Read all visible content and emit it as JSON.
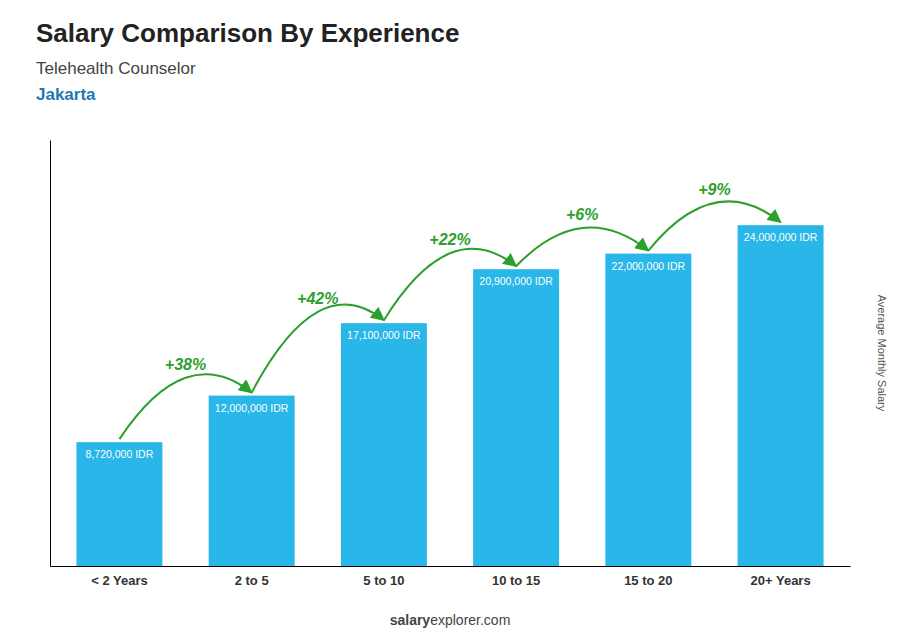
{
  "chart_data": {
    "type": "bar",
    "title": "Salary Comparison By Experience",
    "subtitle": [
      "Telehealth Counselor",
      "Jakarta"
    ],
    "categories": [
      "< 2 Years",
      "2 to 5",
      "5 to 10",
      "10 to 15",
      "15 to 20",
      "20+ Years"
    ],
    "values": [
      8720000,
      12000000,
      17100000,
      20900000,
      22000000,
      24000000
    ],
    "value_labels": [
      "8,720,000 IDR",
      "12,000,000 IDR",
      "17,100,000 IDR",
      "20,900,000 IDR",
      "22,000,000 IDR",
      "24,000,000 IDR"
    ],
    "data_labels": true,
    "annotations": [
      "+38%",
      "+42%",
      "+22%",
      "+6%",
      "+9%"
    ],
    "ylabel": "Average Monthly Salary",
    "footer": [
      "salary",
      "explorer.com"
    ],
    "color": "#29b6e8",
    "ylim": [
      0,
      30000000
    ],
    "tick_labels": "x",
    "grid": false
  }
}
